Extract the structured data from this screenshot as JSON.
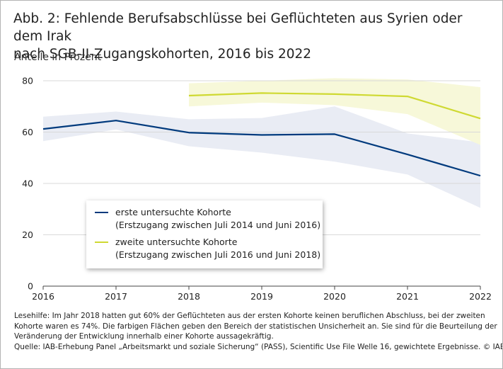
{
  "title_lines": [
    "Abb. 2: Fehlende Berufsabschlüsse bei Geflüchteten aus Syrien oder dem Irak",
    "nach SGB-II-Zugangskohorten, 2016 bis 2022"
  ],
  "colors": {
    "series1": "#003a7d",
    "band1": "#e9ecf4",
    "series2": "#cfd932",
    "band2": "#f7f8d9",
    "grid": "#d9d9d9",
    "axis": "#444444"
  },
  "legend": {
    "items": [
      {
        "line1": "erste untersuchte Kohorte",
        "line2": "(Erstzugang zwischen Juli 2014 und Juni 2016)"
      },
      {
        "line1": "zweite untersuchte Kohorte",
        "line2": "(Erstzugang zwischen Juli 2016 und Juni 2018)"
      }
    ]
  },
  "notes": {
    "lesehilfe_lines": [
      "Lesehilfe: Im Jahr 2018 hatten gut 60% der Geflüchteten aus der ersten Kohorte keinen beruflichen Abschluss, bei der zweiten",
      "Kohorte waren es 74%. Die farbigen Flächen geben den Bereich der statistischen Unsicherheit an. Sie sind für die Beurteilung der",
      "Veränderung der Entwicklung innerhalb einer Kohorte aussagekräftig."
    ],
    "source": "Quelle: IAB-Erhebung Panel „Arbeitsmarkt und soziale Sicherung“ (PASS), Scientific Use File Welle 16, gewichtete Ergebnisse.  © IAB"
  },
  "chart_data": {
    "type": "line",
    "title": "Abb. 2: Fehlende Berufsabschlüsse bei Geflüchteten aus Syrien oder dem Irak nach SGB-II-Zugangskohorten, 2016 bis 2022",
    "ylabel": "Anteile in Prozent",
    "xlabel": "",
    "x": [
      2016,
      2017,
      2018,
      2019,
      2020,
      2021,
      2022
    ],
    "x_tick_labels": [
      "2016",
      "2017",
      "2018",
      "2019",
      "2020",
      "2021",
      "2022"
    ],
    "ylim": [
      0,
      80
    ],
    "y_ticks": [
      0,
      20,
      40,
      60,
      80
    ],
    "y_tick_labels": [
      "0",
      "20",
      "40",
      "60",
      "80"
    ],
    "grid": true,
    "legend_position": "lower-left",
    "series": [
      {
        "name": "erste untersuchte Kohorte (Erstzugang zwischen Juli 2014 und Juni 2016)",
        "x": [
          2016,
          2017,
          2018,
          2019,
          2020,
          2021,
          2022
        ],
        "values": [
          61.2,
          64.5,
          59.8,
          58.9,
          59.2,
          51.3,
          43.0
        ],
        "ci_lower": [
          56.5,
          61.0,
          54.5,
          52.0,
          48.5,
          43.5,
          30.5
        ],
        "ci_upper": [
          66.0,
          68.0,
          65.0,
          65.5,
          70.0,
          59.5,
          56.0
        ]
      },
      {
        "name": "zweite untersuchte Kohorte (Erstzugang zwischen Juli 2016 und Juni 2018)",
        "x": [
          2018,
          2019,
          2020,
          2021,
          2022
        ],
        "values": [
          74.2,
          75.2,
          74.8,
          73.9,
          65.3
        ],
        "ci_lower": [
          70.0,
          71.5,
          70.5,
          67.0,
          55.0
        ],
        "ci_upper": [
          79.0,
          80.0,
          81.0,
          80.5,
          77.5
        ]
      }
    ]
  }
}
